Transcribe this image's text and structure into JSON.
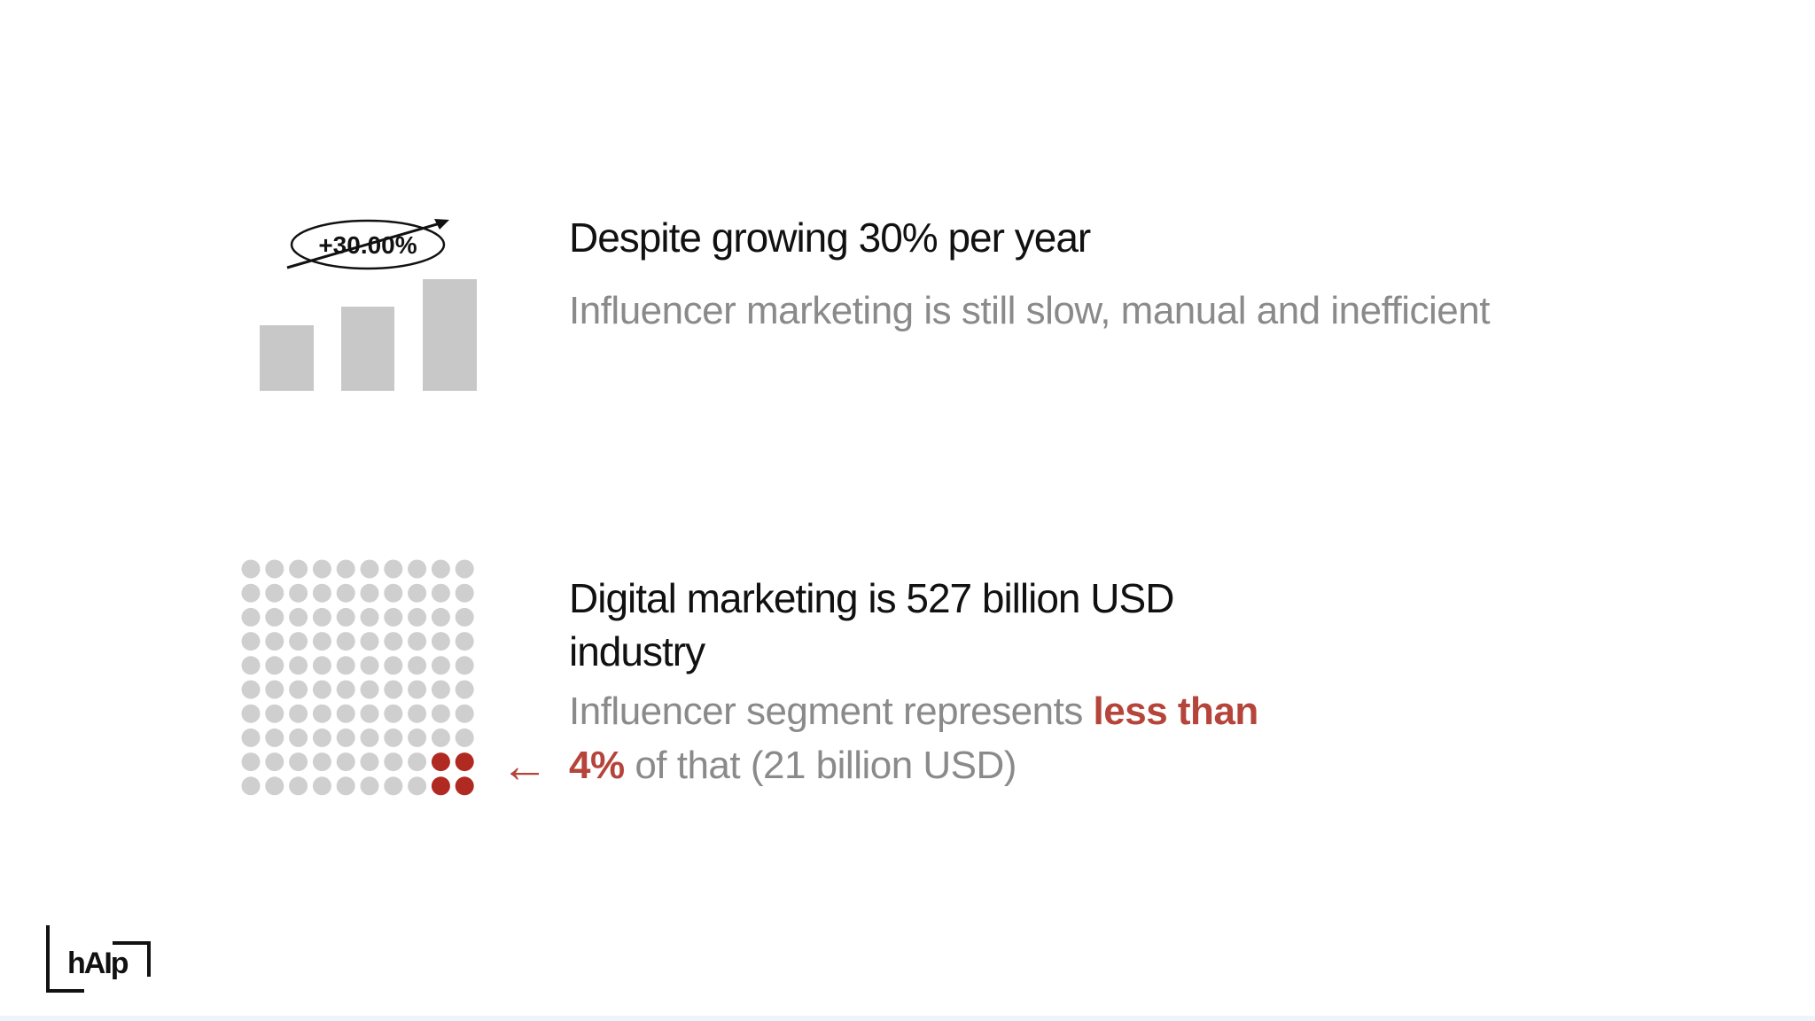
{
  "sections": [
    {
      "badge": "+30.00%",
      "heading": "Despite growing 30% per year",
      "body": [
        "Influencer marketing is still slow, manual and inefficient"
      ]
    },
    {
      "heading": "Digital marketing is 527 billion USD industry",
      "body": [
        "Influencer segment represents ",
        "less than",
        "4%",
        " of that (21 billion USD)"
      ],
      "arrow": "←"
    }
  ],
  "logo": "hAIp"
}
